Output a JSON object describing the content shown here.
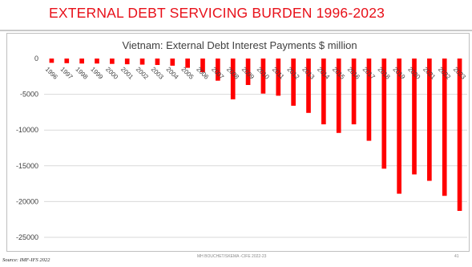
{
  "slide": {
    "title": "EXTERNAL DEBT SERVICING BURDEN 1996-2023",
    "footer": "MH BOUCHET/SKEMA -CIFE 2022-23",
    "page_number": "41",
    "source": "Source: IMF-IFS 2022"
  },
  "colors": {
    "title": "#e8111a",
    "bar": "#ff0000",
    "grid": "#d9d9d9"
  },
  "chart_data": {
    "type": "bar",
    "title": "Vietnam: External Debt Interest Payments $ million",
    "xlabel": "",
    "ylabel": "",
    "ylim": [
      -25000,
      0
    ],
    "yticks": [
      0,
      -5000,
      -10000,
      -15000,
      -20000,
      -25000
    ],
    "grid": true,
    "categories": [
      "1996",
      "1997",
      "1998",
      "1999",
      "2000",
      "2001",
      "2002",
      "2003",
      "2004",
      "2005",
      "2006",
      "2007",
      "2008",
      "2009",
      "2010",
      "2011",
      "2012",
      "2013",
      "2014",
      "2015",
      "2016",
      "2017",
      "2018",
      "2019",
      "2020",
      "2021",
      "2022",
      "2023"
    ],
    "values": [
      -600,
      -650,
      -700,
      -700,
      -750,
      -800,
      -850,
      -900,
      -1000,
      -1300,
      -1900,
      -3100,
      -5700,
      -3700,
      -4900,
      -5200,
      -6600,
      -7600,
      -9200,
      -10400,
      -9200,
      -11500,
      -15400,
      -18900,
      -16200,
      -17100,
      -19200,
      -21300
    ]
  }
}
